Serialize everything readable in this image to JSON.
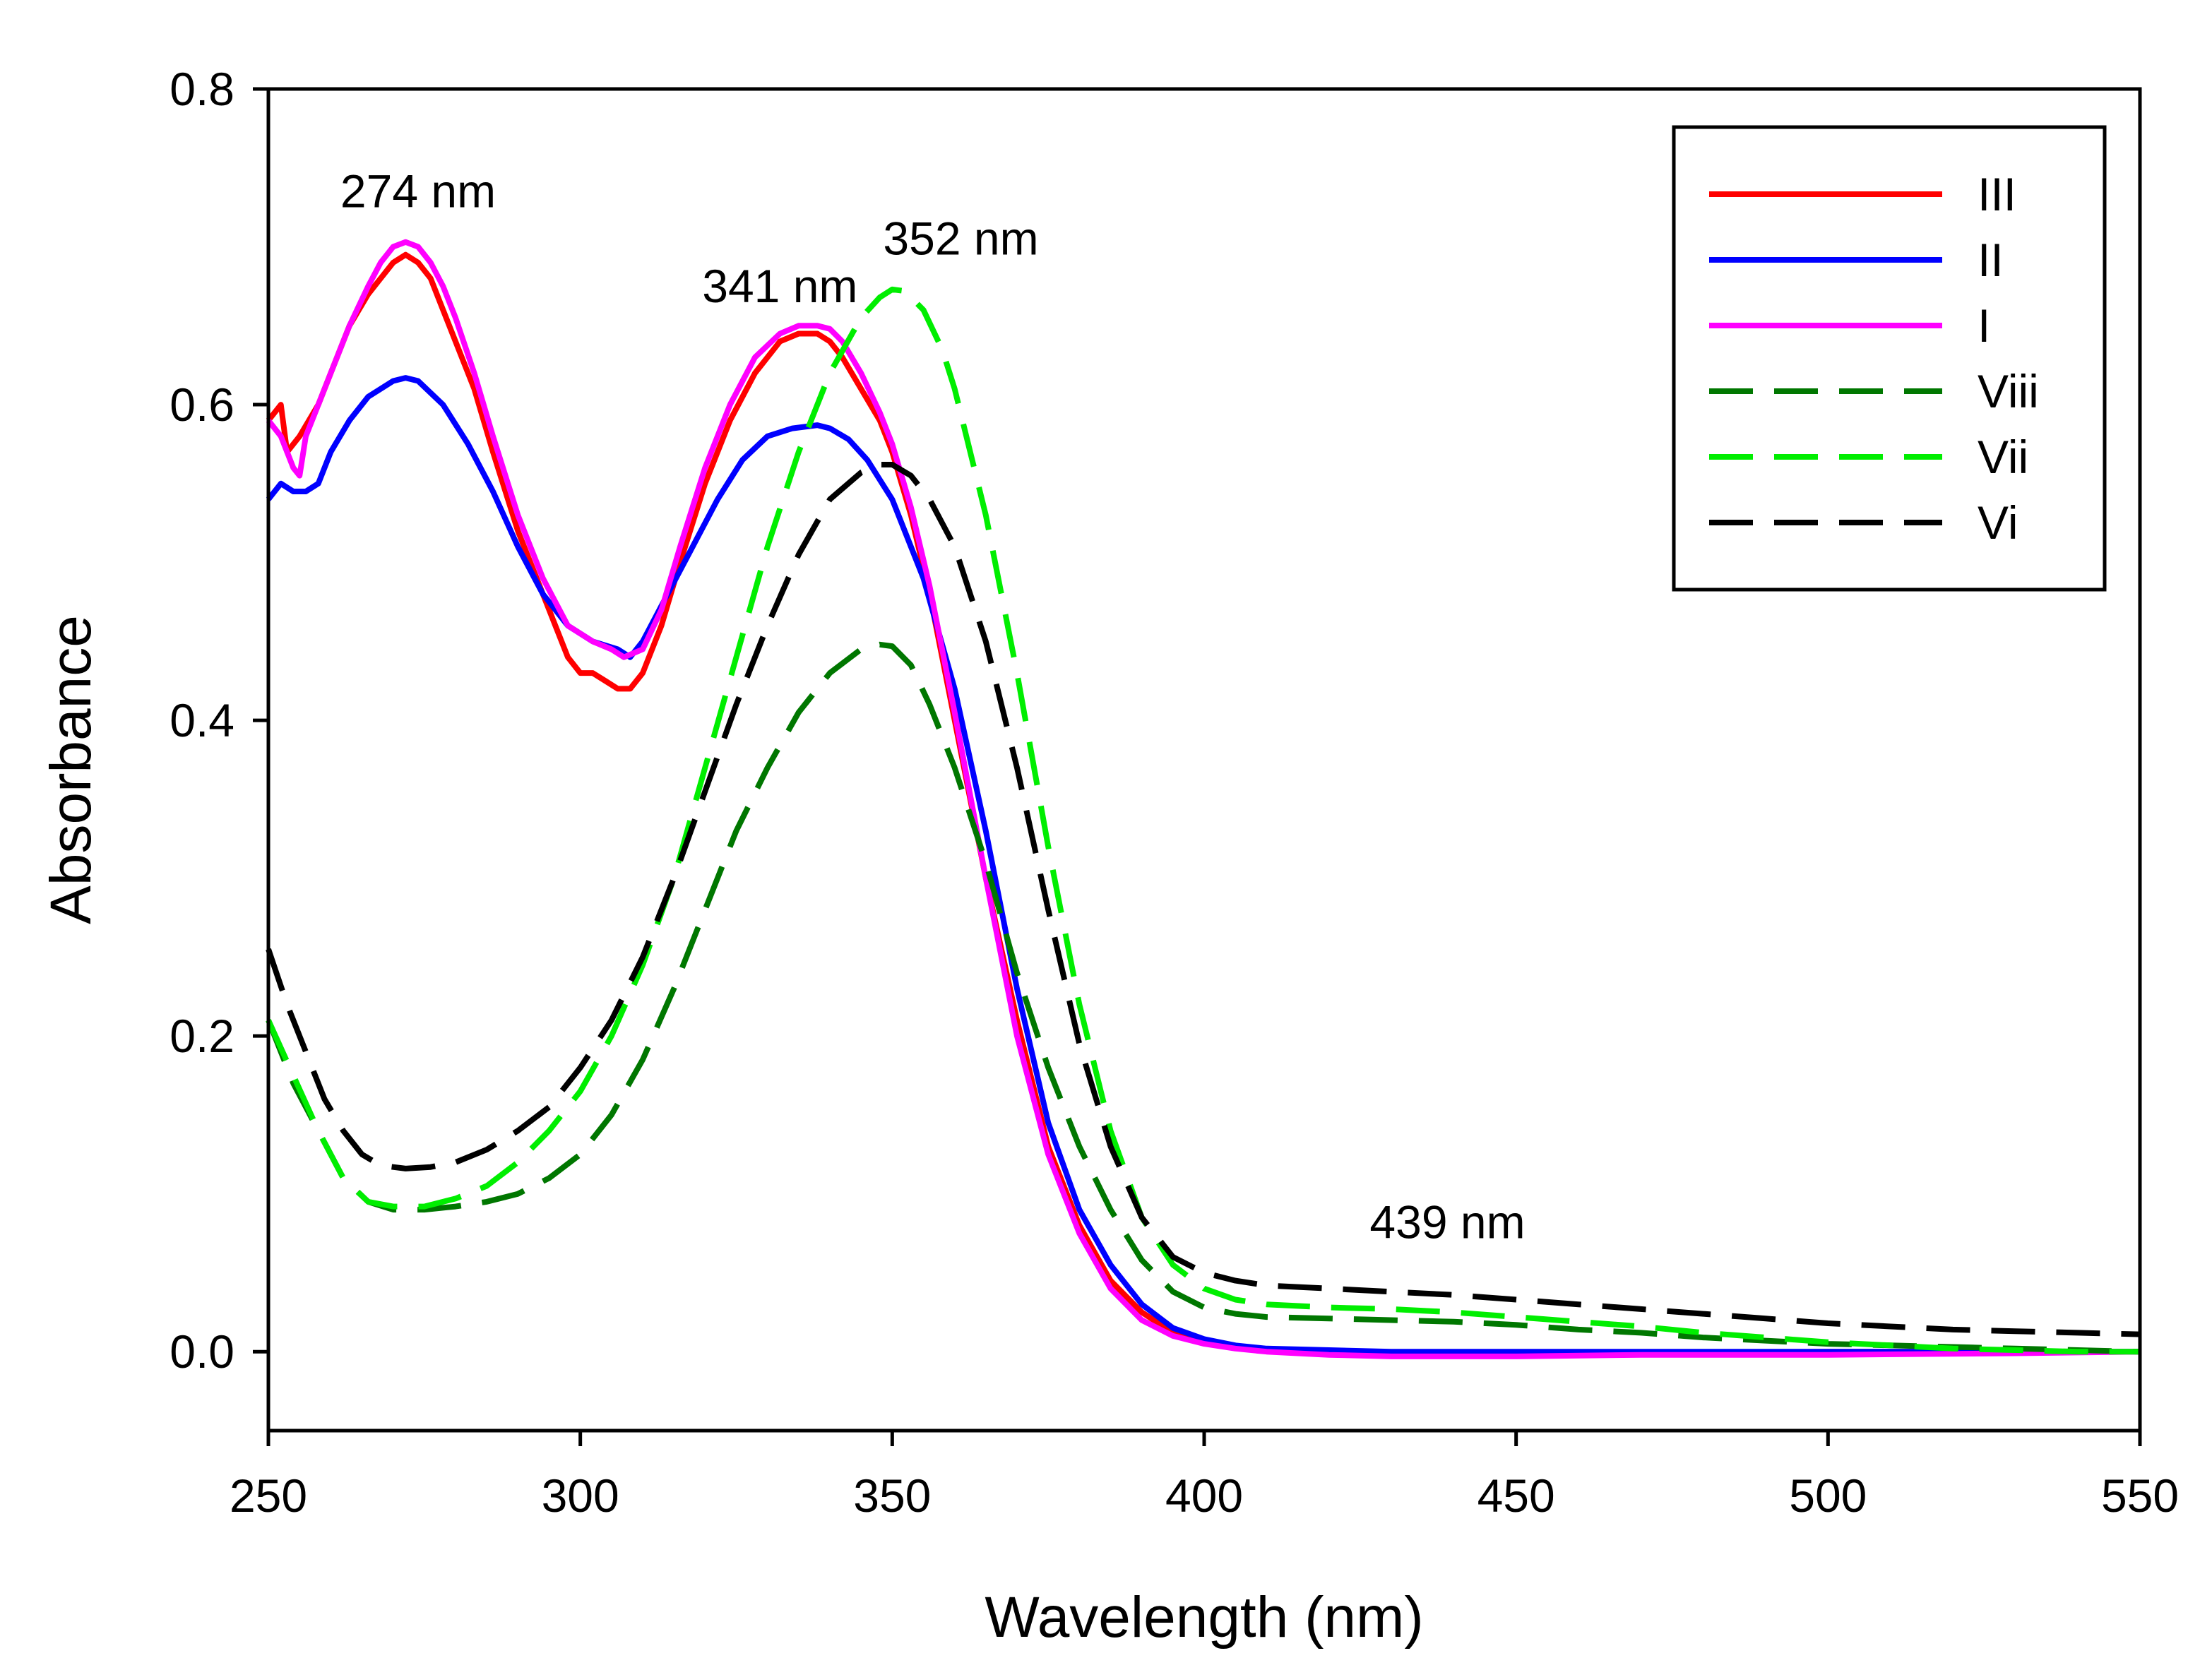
{
  "chart_data": {
    "type": "line",
    "title": "",
    "xlabel": "Wavelength (nm)",
    "ylabel": "Absorbance",
    "xlim": [
      250,
      550
    ],
    "ylim": [
      -0.05,
      0.8
    ],
    "xticks": [
      250,
      300,
      350,
      400,
      450,
      500,
      550
    ],
    "xtick_labels": [
      "250",
      "300",
      "350",
      "400",
      "450",
      "500",
      "550"
    ],
    "yticks": [
      0.0,
      0.2,
      0.4,
      0.6,
      0.8
    ],
    "ytick_labels": [
      "0.0",
      "0.2",
      "0.4",
      "0.6",
      "0.8"
    ],
    "grid": false,
    "legend_position": "top-right",
    "annotations": [
      {
        "text": "274 nm",
        "x": 274,
        "y": 0.725
      },
      {
        "text": "341 nm",
        "x": 332,
        "y": 0.665
      },
      {
        "text": "352 nm",
        "x": 361,
        "y": 0.695
      },
      {
        "text": "439 nm",
        "x": 439,
        "y": 0.072
      }
    ],
    "series": [
      {
        "name": "III",
        "color": "#ff0000",
        "dash": "solid",
        "x": [
          250,
          252,
          253,
          255,
          258,
          260,
          263,
          266,
          268,
          270,
          272,
          274,
          276,
          278,
          280,
          283,
          286,
          290,
          294,
          298,
          300,
          302,
          304,
          306,
          308,
          310,
          313,
          316,
          320,
          324,
          328,
          332,
          335,
          338,
          340,
          342,
          345,
          348,
          350,
          353,
          356,
          360,
          365,
          370,
          375,
          380,
          385,
          390,
          395,
          400,
          405,
          410,
          420,
          430,
          440,
          450,
          470,
          500,
          530,
          550
        ],
        "y": [
          0.59,
          0.6,
          0.57,
          0.58,
          0.6,
          0.62,
          0.65,
          0.67,
          0.68,
          0.69,
          0.695,
          0.69,
          0.68,
          0.66,
          0.64,
          0.61,
          0.57,
          0.52,
          0.48,
          0.44,
          0.43,
          0.43,
          0.425,
          0.42,
          0.42,
          0.43,
          0.46,
          0.5,
          0.55,
          0.59,
          0.62,
          0.64,
          0.645,
          0.645,
          0.64,
          0.63,
          0.61,
          0.59,
          0.57,
          0.53,
          0.48,
          0.4,
          0.3,
          0.21,
          0.13,
          0.08,
          0.045,
          0.025,
          0.012,
          0.006,
          0.003,
          0.001,
          0.0,
          -0.001,
          -0.001,
          -0.001,
          -0.001,
          0.0,
          0.0,
          0.0
        ]
      },
      {
        "name": "II",
        "color": "#0000ff",
        "dash": "solid",
        "x": [
          250,
          252,
          254,
          256,
          258,
          260,
          263,
          266,
          270,
          272,
          274,
          278,
          282,
          286,
          290,
          294,
          298,
          302,
          306,
          308,
          310,
          314,
          318,
          322,
          326,
          330,
          334,
          338,
          340,
          343,
          346,
          350,
          355,
          360,
          365,
          370,
          375,
          380,
          385,
          390,
          395,
          400,
          405,
          410,
          420,
          430,
          440,
          450,
          470,
          500,
          530,
          550
        ],
        "y": [
          0.54,
          0.55,
          0.545,
          0.545,
          0.55,
          0.57,
          0.59,
          0.605,
          0.615,
          0.617,
          0.615,
          0.6,
          0.575,
          0.545,
          0.51,
          0.48,
          0.46,
          0.45,
          0.445,
          0.44,
          0.45,
          0.48,
          0.51,
          0.54,
          0.565,
          0.58,
          0.585,
          0.587,
          0.585,
          0.578,
          0.565,
          0.54,
          0.49,
          0.42,
          0.33,
          0.23,
          0.145,
          0.09,
          0.055,
          0.03,
          0.015,
          0.008,
          0.004,
          0.002,
          0.001,
          0.0,
          0.0,
          0.0,
          0.0,
          0.0,
          0.0,
          0.0
        ]
      },
      {
        "name": "I",
        "color": "#ff00ff",
        "dash": "solid",
        "x": [
          250,
          252,
          253,
          254,
          255,
          256,
          258,
          260,
          263,
          266,
          268,
          270,
          272,
          274,
          276,
          278,
          280,
          283,
          286,
          290,
          294,
          298,
          302,
          305,
          307,
          310,
          313,
          316,
          320,
          324,
          328,
          332,
          335,
          338,
          340,
          342,
          345,
          348,
          350,
          353,
          356,
          360,
          365,
          370,
          375,
          380,
          385,
          390,
          395,
          400,
          405,
          410,
          420,
          430,
          440,
          450,
          470,
          500,
          530,
          550
        ],
        "y": [
          0.59,
          0.58,
          0.57,
          0.56,
          0.555,
          0.58,
          0.6,
          0.62,
          0.65,
          0.675,
          0.69,
          0.7,
          0.703,
          0.7,
          0.69,
          0.675,
          0.655,
          0.62,
          0.58,
          0.53,
          0.49,
          0.46,
          0.45,
          0.445,
          0.44,
          0.445,
          0.47,
          0.51,
          0.56,
          0.6,
          0.63,
          0.645,
          0.65,
          0.65,
          0.648,
          0.64,
          0.62,
          0.595,
          0.575,
          0.535,
          0.485,
          0.405,
          0.3,
          0.2,
          0.125,
          0.075,
          0.04,
          0.02,
          0.01,
          0.005,
          0.002,
          0.0,
          -0.002,
          -0.003,
          -0.003,
          -0.003,
          -0.002,
          -0.002,
          -0.001,
          0.0
        ]
      },
      {
        "name": "Viii",
        "color": "#007700",
        "dash": "dashed",
        "x": [
          250,
          254,
          258,
          262,
          266,
          270,
          275,
          280,
          285,
          290,
          295,
          300,
          305,
          310,
          315,
          320,
          325,
          330,
          335,
          340,
          345,
          348,
          350,
          353,
          356,
          360,
          365,
          370,
          375,
          380,
          385,
          390,
          395,
          400,
          405,
          410,
          420,
          430,
          440,
          450,
          460,
          470,
          480,
          490,
          500,
          510,
          520,
          530,
          540,
          550
        ],
        "y": [
          0.21,
          0.17,
          0.14,
          0.11,
          0.095,
          0.09,
          0.09,
          0.092,
          0.095,
          0.1,
          0.11,
          0.125,
          0.15,
          0.185,
          0.23,
          0.28,
          0.33,
          0.37,
          0.405,
          0.43,
          0.445,
          0.448,
          0.447,
          0.435,
          0.41,
          0.37,
          0.31,
          0.24,
          0.18,
          0.13,
          0.09,
          0.058,
          0.038,
          0.028,
          0.024,
          0.022,
          0.021,
          0.02,
          0.019,
          0.017,
          0.014,
          0.012,
          0.009,
          0.007,
          0.005,
          0.004,
          0.003,
          0.002,
          0.001,
          0.0
        ]
      },
      {
        "name": "Vii",
        "color": "#00ee00",
        "dash": "dashed",
        "x": [
          250,
          254,
          258,
          262,
          266,
          270,
          275,
          280,
          285,
          290,
          295,
          300,
          305,
          310,
          315,
          320,
          325,
          330,
          335,
          340,
          345,
          348,
          350,
          352,
          355,
          358,
          360,
          365,
          370,
          375,
          380,
          385,
          390,
          395,
          400,
          405,
          410,
          420,
          430,
          440,
          450,
          460,
          470,
          480,
          490,
          500,
          510,
          520,
          530,
          540,
          550
        ],
        "y": [
          0.21,
          0.175,
          0.14,
          0.11,
          0.095,
          0.092,
          0.092,
          0.097,
          0.105,
          0.12,
          0.14,
          0.165,
          0.2,
          0.245,
          0.3,
          0.37,
          0.44,
          0.51,
          0.57,
          0.62,
          0.655,
          0.668,
          0.673,
          0.672,
          0.66,
          0.635,
          0.61,
          0.53,
          0.43,
          0.32,
          0.22,
          0.14,
          0.085,
          0.055,
          0.04,
          0.033,
          0.03,
          0.028,
          0.027,
          0.025,
          0.022,
          0.019,
          0.016,
          0.012,
          0.009,
          0.006,
          0.004,
          0.002,
          0.001,
          0.0,
          0.0
        ]
      },
      {
        "name": "Vi",
        "color": "#000000",
        "dash": "dashed",
        "x": [
          250,
          253,
          256,
          259,
          262,
          265,
          268,
          272,
          276,
          280,
          285,
          290,
          295,
          300,
          305,
          310,
          315,
          320,
          325,
          330,
          335,
          340,
          345,
          348,
          350,
          353,
          356,
          360,
          365,
          370,
          375,
          380,
          385,
          390,
          395,
          400,
          405,
          410,
          420,
          430,
          440,
          450,
          460,
          470,
          480,
          490,
          500,
          510,
          520,
          530,
          540,
          550
        ],
        "y": [
          0.255,
          0.22,
          0.19,
          0.16,
          0.14,
          0.125,
          0.118,
          0.116,
          0.117,
          0.12,
          0.128,
          0.14,
          0.155,
          0.18,
          0.21,
          0.25,
          0.3,
          0.355,
          0.41,
          0.46,
          0.505,
          0.54,
          0.557,
          0.562,
          0.562,
          0.555,
          0.54,
          0.51,
          0.45,
          0.37,
          0.28,
          0.195,
          0.13,
          0.085,
          0.06,
          0.05,
          0.045,
          0.042,
          0.04,
          0.038,
          0.036,
          0.033,
          0.03,
          0.027,
          0.024,
          0.021,
          0.018,
          0.016,
          0.014,
          0.013,
          0.012,
          0.011
        ]
      }
    ]
  }
}
